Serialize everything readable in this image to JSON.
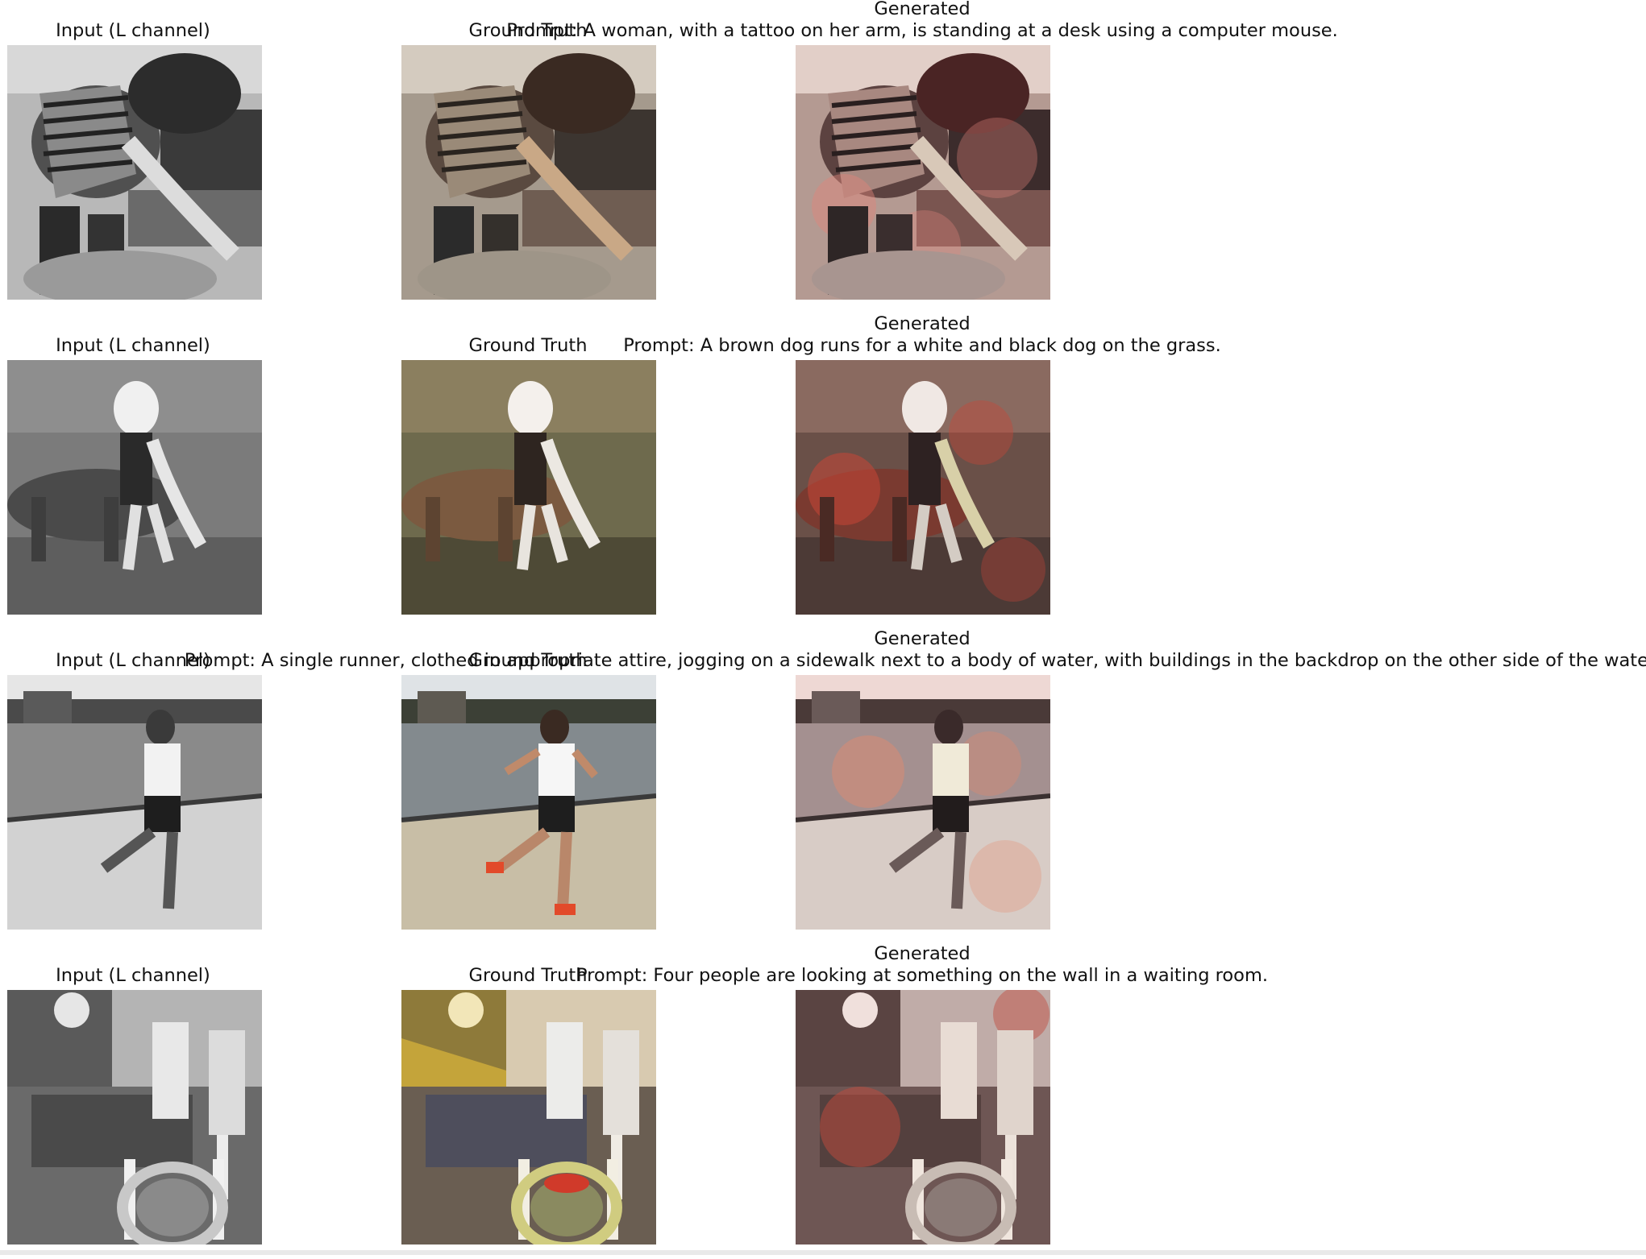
{
  "labels": {
    "input": "Input (L channel)",
    "ground_truth": "Ground Truth",
    "generated": "Generated"
  },
  "rows": [
    {
      "prompt": "Prompt: A woman, with a tattoo on her arm, is standing at a desk using a computer mouse.",
      "scene": "woman-at-desk",
      "colors": {
        "gt_bg": "#a59a8d",
        "gt_fg": "#c9a886",
        "gen_tint": "#e0857a"
      }
    },
    {
      "prompt": "Prompt: A brown dog runs for a white and black dog on the grass.",
      "scene": "dogs-on-grass",
      "colors": {
        "gt_bg": "#6e6a4d",
        "gt_fg": "#7b5a40",
        "gen_tint": "#c74636"
      }
    },
    {
      "prompt": "Prompt: A single runner, clothed in appropriate attire, jogging on a sidewalk next to a body of water, with buildings in the backdrop on the other side of the water.",
      "scene": "runner-by-water",
      "colors": {
        "gt_bg": "#8f9599",
        "gt_fg": "#c8bea6",
        "gen_tint": "#e58a6c"
      }
    },
    {
      "prompt": "Prompt: Four people are looking at something on the wall in a waiting room.",
      "scene": "waiting-room",
      "colors": {
        "gt_bg": "#8e7a3a",
        "gt_fg": "#5b5b66",
        "gen_tint": "#c24a3c"
      }
    }
  ]
}
